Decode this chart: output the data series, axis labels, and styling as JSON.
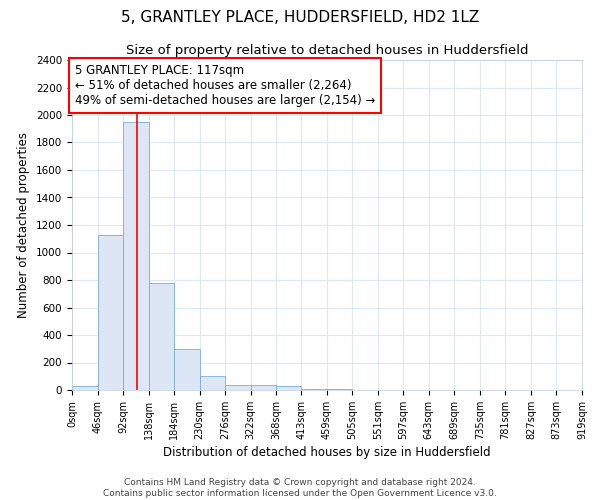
{
  "title": "5, GRANTLEY PLACE, HUDDERSFIELD, HD2 1LZ",
  "subtitle": "Size of property relative to detached houses in Huddersfield",
  "xlabel": "Distribution of detached houses by size in Huddersfield",
  "ylabel": "Number of detached properties",
  "bin_edges": [
    0,
    46,
    92,
    138,
    184,
    230,
    276,
    322,
    368,
    413,
    459,
    505,
    551,
    597,
    643,
    689,
    735,
    781,
    827,
    873,
    919
  ],
  "bin_counts": [
    30,
    1130,
    1950,
    775,
    300,
    100,
    40,
    40,
    30,
    10,
    5,
    3,
    2,
    1,
    1,
    1,
    1,
    1,
    1,
    1
  ],
  "bar_color": "#dce6f5",
  "bar_edge_color": "#7aadd6",
  "red_line_x": 117,
  "annotation_line1": "5 GRANTLEY PLACE: 117sqm",
  "annotation_line2": "← 51% of detached houses are smaller (2,264)",
  "annotation_line3": "49% of semi-detached houses are larger (2,154) →",
  "annotation_box_color": "white",
  "annotation_box_edge_color": "red",
  "ylim": [
    0,
    2400
  ],
  "yticks": [
    0,
    200,
    400,
    600,
    800,
    1000,
    1200,
    1400,
    1600,
    1800,
    2000,
    2200,
    2400
  ],
  "tick_labels": [
    "0sqm",
    "46sqm",
    "92sqm",
    "138sqm",
    "184sqm",
    "230sqm",
    "276sqm",
    "322sqm",
    "368sqm",
    "413sqm",
    "459sqm",
    "505sqm",
    "551sqm",
    "597sqm",
    "643sqm",
    "689sqm",
    "735sqm",
    "781sqm",
    "827sqm",
    "873sqm",
    "919sqm"
  ],
  "footer_text": "Contains HM Land Registry data © Crown copyright and database right 2024.\nContains public sector information licensed under the Open Government Licence v3.0.",
  "grid_color": "#dde8f5",
  "title_fontsize": 11,
  "subtitle_fontsize": 9.5,
  "axis_label_fontsize": 8.5,
  "tick_fontsize": 7.5,
  "annotation_fontsize": 8.5,
  "footer_fontsize": 6.5
}
